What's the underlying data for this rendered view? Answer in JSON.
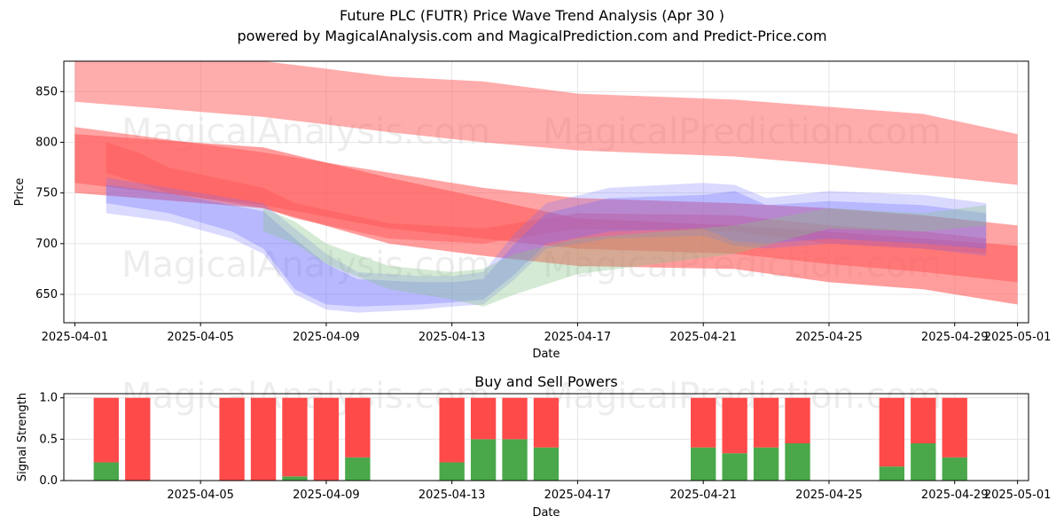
{
  "title": "Future PLC (FUTR) Price Wave Trend Analysis (Apr 30 )",
  "subtitle": "powered by MagicalAnalysis.com and MagicalPrediction.com and Predict-Price.com",
  "watermarks": [
    "MagicalAnalysis.com",
    "MagicalPrediction.com"
  ],
  "colors": {
    "red": "#ff5a5a",
    "blue": "#6a6aff",
    "green": "#86c286",
    "buy": "#4aa84a",
    "sell": "#ff4a4a"
  },
  "chart_data": [
    {
      "type": "area",
      "xlabel": "Date",
      "ylabel": "Price",
      "x_range": [
        "2025-04-01",
        "2025-05-01"
      ],
      "ylim": [
        622,
        880
      ],
      "y_ticks": [
        650,
        700,
        750,
        800,
        850
      ],
      "x_ticks": [
        "2025-04-01",
        "2025-04-05",
        "2025-04-09",
        "2025-04-13",
        "2025-04-17",
        "2025-04-21",
        "2025-04-25",
        "2025-04-29",
        "2025-05-01"
      ],
      "grid": true,
      "series": [
        {
          "color": "red",
          "opacity": 0.5,
          "x": [
            "2025-04-01",
            "2025-04-07",
            "2025-04-11",
            "2025-04-14",
            "2025-04-17",
            "2025-04-22",
            "2025-04-25",
            "2025-04-28",
            "2025-05-01"
          ],
          "upper": [
            880,
            880,
            865,
            860,
            848,
            842,
            835,
            828,
            808
          ],
          "lower": [
            840,
            825,
            810,
            800,
            792,
            786,
            778,
            768,
            758
          ]
        },
        {
          "color": "red",
          "opacity": 0.55,
          "x": [
            "2025-04-01",
            "2025-04-07",
            "2025-04-11",
            "2025-04-14",
            "2025-04-17",
            "2025-04-22",
            "2025-04-25",
            "2025-04-28",
            "2025-05-01"
          ],
          "upper": [
            815,
            790,
            770,
            755,
            745,
            740,
            735,
            728,
            718
          ],
          "lower": [
            760,
            738,
            715,
            705,
            695,
            690,
            680,
            672,
            662
          ]
        },
        {
          "color": "red",
          "opacity": 0.6,
          "x": [
            "2025-04-01",
            "2025-04-07",
            "2025-04-11",
            "2025-04-14",
            "2025-04-17",
            "2025-04-22",
            "2025-04-25",
            "2025-04-28",
            "2025-05-01"
          ],
          "upper": [
            808,
            795,
            765,
            745,
            725,
            718,
            712,
            705,
            698
          ],
          "lower": [
            750,
            735,
            700,
            688,
            678,
            675,
            662,
            655,
            640
          ]
        },
        {
          "color": "red",
          "opacity": 0.5,
          "x": [
            "2025-04-02",
            "2025-04-03",
            "2025-04-04",
            "2025-04-07",
            "2025-04-08",
            "2025-04-11",
            "2025-04-14",
            "2025-04-17",
            "2025-04-22",
            "2025-04-25",
            "2025-04-28",
            "2025-04-30"
          ],
          "upper": [
            800,
            790,
            775,
            755,
            740,
            720,
            715,
            730,
            728,
            718,
            712,
            705
          ],
          "lower": [
            770,
            760,
            750,
            735,
            725,
            705,
            700,
            715,
            712,
            700,
            695,
            690
          ]
        },
        {
          "color": "blue",
          "opacity": 0.3,
          "x": [
            "2025-04-02",
            "2025-04-04",
            "2025-04-06",
            "2025-04-07",
            "2025-04-08",
            "2025-04-09",
            "2025-04-10",
            "2025-04-12",
            "2025-04-13",
            "2025-04-14",
            "2025-04-15",
            "2025-04-16",
            "2025-04-18",
            "2025-04-21",
            "2025-04-22",
            "2025-04-23",
            "2025-04-25",
            "2025-04-28",
            "2025-04-30"
          ],
          "upper": [
            758,
            750,
            738,
            732,
            705,
            680,
            665,
            662,
            662,
            665,
            700,
            730,
            745,
            748,
            752,
            738,
            742,
            738,
            730
          ],
          "lower": [
            740,
            730,
            712,
            695,
            655,
            640,
            638,
            640,
            642,
            645,
            670,
            700,
            712,
            715,
            702,
            700,
            705,
            700,
            695
          ]
        },
        {
          "color": "blue",
          "opacity": 0.25,
          "x": [
            "2025-04-02",
            "2025-04-04",
            "2025-04-06",
            "2025-04-07",
            "2025-04-08",
            "2025-04-09",
            "2025-04-10",
            "2025-04-12",
            "2025-04-13",
            "2025-04-14",
            "2025-04-15",
            "2025-04-16",
            "2025-04-18",
            "2025-04-21",
            "2025-04-22",
            "2025-04-23",
            "2025-04-25",
            "2025-04-28",
            "2025-04-30"
          ],
          "upper": [
            765,
            755,
            745,
            740,
            715,
            690,
            672,
            668,
            668,
            672,
            710,
            740,
            755,
            760,
            758,
            745,
            752,
            748,
            740
          ],
          "lower": [
            730,
            722,
            705,
            690,
            650,
            635,
            632,
            635,
            638,
            640,
            665,
            695,
            705,
            708,
            698,
            695,
            700,
            695,
            688
          ]
        },
        {
          "color": "green",
          "opacity": 0.35,
          "x": [
            "2025-04-07",
            "2025-04-08",
            "2025-04-09",
            "2025-04-11",
            "2025-04-13",
            "2025-04-14",
            "2025-04-15",
            "2025-04-17",
            "2025-04-22",
            "2025-04-25",
            "2025-04-28",
            "2025-04-30"
          ],
          "upper": [
            735,
            722,
            700,
            678,
            672,
            675,
            690,
            705,
            718,
            735,
            730,
            738
          ],
          "lower": [
            712,
            700,
            680,
            655,
            645,
            638,
            650,
            670,
            690,
            715,
            712,
            718
          ]
        }
      ]
    },
    {
      "type": "bar",
      "title": "Buy and Sell Powers",
      "xlabel": "Date",
      "ylabel": "Signal Strength",
      "ylim": [
        0,
        1.05
      ],
      "y_ticks": [
        0.0,
        0.5,
        1.0
      ],
      "x_ticks": [
        "2025-04-05",
        "2025-04-09",
        "2025-04-13",
        "2025-04-17",
        "2025-04-21",
        "2025-04-25",
        "2025-04-29",
        "2025-05-01"
      ],
      "grid": true,
      "dates": [
        "2025-04-02",
        "2025-04-03",
        "2025-04-06",
        "2025-04-07",
        "2025-04-08",
        "2025-04-09",
        "2025-04-10",
        "2025-04-13",
        "2025-04-14",
        "2025-04-15",
        "2025-04-16",
        "2025-04-21",
        "2025-04-22",
        "2025-04-23",
        "2025-04-24",
        "2025-04-27",
        "2025-04-28",
        "2025-04-29"
      ],
      "buy": [
        0.22,
        0.0,
        0.0,
        0.0,
        0.05,
        0.0,
        0.28,
        0.22,
        0.5,
        0.5,
        0.4,
        0.4,
        0.33,
        0.4,
        0.45,
        0.17,
        0.45,
        0.28
      ],
      "sell": [
        0.78,
        1.0,
        1.0,
        1.0,
        0.95,
        1.0,
        0.72,
        0.78,
        0.5,
        0.5,
        0.6,
        0.6,
        0.67,
        0.6,
        0.55,
        0.83,
        0.55,
        0.72
      ]
    }
  ]
}
